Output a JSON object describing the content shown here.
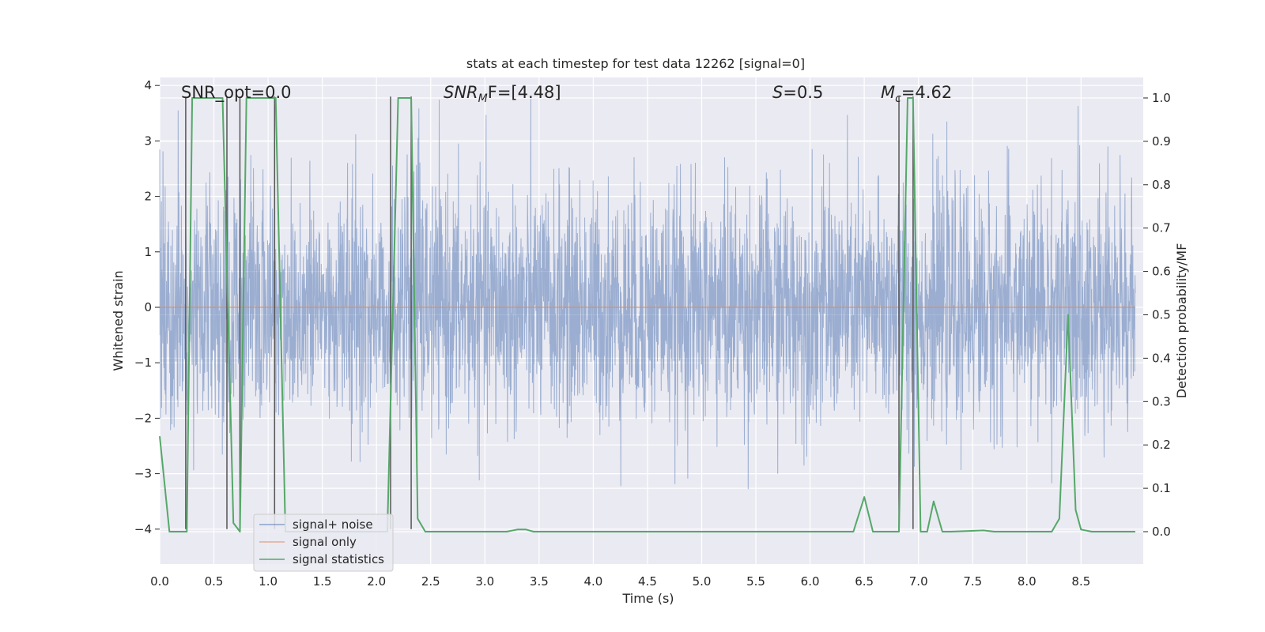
{
  "chart_data": {
    "type": "line",
    "title": "stats at each timestep for test data 12262 [signal=0]",
    "xlabel": "Time (s)",
    "ylabel": "Whitened strain",
    "ylabel_right": "Detection probability/MF",
    "xlim": [
      0.0,
      9.0
    ],
    "ylim": [
      -4.4,
      4.2
    ],
    "ylim_right": [
      -0.05,
      1.03
    ],
    "x_ticks": [
      "0.0",
      "0.5",
      "1.0",
      "1.5",
      "2.0",
      "2.5",
      "3.0",
      "3.5",
      "4.0",
      "4.5",
      "5.0",
      "5.5",
      "6.0",
      "6.5",
      "7.0",
      "7.5",
      "8.0",
      "8.5"
    ],
    "y_ticks": [
      "−4",
      "−3",
      "−2",
      "−1",
      "0",
      "1",
      "2",
      "3",
      "4"
    ],
    "y_ticks_right": [
      "0.0",
      "0.1",
      "0.2",
      "0.3",
      "0.4",
      "0.5",
      "0.6",
      "0.7",
      "0.8",
      "0.9",
      "1.0"
    ],
    "annotations": {
      "snr_opt": "SNR_opt=0.0",
      "snr_mf_main": "SNR",
      "snr_mf_sub": "M",
      "snr_mf_rest": "F=[4.48]",
      "s_italic": "S",
      "s_rest": "=0.5",
      "mc_main": "M",
      "mc_sub": "c",
      "mc_rest": "=4.62"
    },
    "legend": {
      "placement": "bottom-left",
      "entries": [
        "signal+ noise",
        "signal only",
        "signal statistics"
      ]
    },
    "series": [
      {
        "name": "signal+ noise",
        "axis": "left",
        "color": "#4c72b0",
        "description": "dense whitened noise, typical band about -2 to 2.5 with peaks to 3.8 and dips to -4",
        "x_range": [
          0.0,
          9.0
        ],
        "typical_upper": 2.4,
        "typical_lower": -2.0,
        "max": 3.8,
        "min": -4.0
      },
      {
        "name": "signal only",
        "axis": "left",
        "color": "#dd8452",
        "x": [
          0.0,
          9.0
        ],
        "y": [
          0.0,
          0.0
        ]
      },
      {
        "name": "signal statistics",
        "axis": "right",
        "color": "#55a868",
        "x": [
          0.0,
          0.09,
          0.25,
          0.3,
          0.58,
          0.68,
          0.74,
          0.8,
          1.07,
          1.16,
          1.3,
          2.0,
          2.1,
          2.2,
          2.32,
          2.38,
          2.45,
          3.2,
          3.3,
          3.38,
          3.45,
          6.4,
          6.5,
          6.58,
          6.82,
          6.9,
          6.95,
          7.02,
          7.08,
          7.14,
          7.22,
          7.3,
          7.6,
          7.7,
          8.23,
          8.3,
          8.38,
          8.45,
          8.5,
          8.6,
          9.0
        ],
        "y": [
          0.22,
          0.0,
          0.0,
          1.0,
          1.0,
          0.02,
          0.0,
          1.0,
          1.0,
          0.0,
          0.0,
          0.0,
          0.0,
          1.0,
          1.0,
          0.03,
          0.0,
          0.0,
          0.005,
          0.005,
          0.0,
          0.0,
          0.08,
          0.0,
          0.0,
          1.0,
          1.0,
          0.0,
          0.0,
          0.07,
          0.0,
          0.0,
          0.003,
          0.0,
          0.0,
          0.03,
          0.5,
          0.05,
          0.005,
          0.0,
          0.0
        ]
      }
    ],
    "markers": {
      "color": "#555555",
      "description": "vertical lines marking statistic transitions",
      "segments": [
        {
          "x": 0.24,
          "y_top": 3.8,
          "y_bottom": -4.0
        },
        {
          "x": 0.62,
          "y_top": 3.8,
          "y_bottom": -4.0
        },
        {
          "x": 0.74,
          "y_top": 3.8,
          "y_bottom": -4.0
        },
        {
          "x": 1.06,
          "y_top": 3.8,
          "y_bottom": -4.0
        },
        {
          "x": 2.13,
          "y_top": 3.8,
          "y_bottom": -4.0
        },
        {
          "x": 2.32,
          "y_top": 3.8,
          "y_bottom": -4.0
        },
        {
          "x": 6.82,
          "y_top": 3.8,
          "y_bottom": -4.0
        },
        {
          "x": 6.95,
          "y_top": 3.8,
          "y_bottom": -4.0
        }
      ]
    }
  }
}
